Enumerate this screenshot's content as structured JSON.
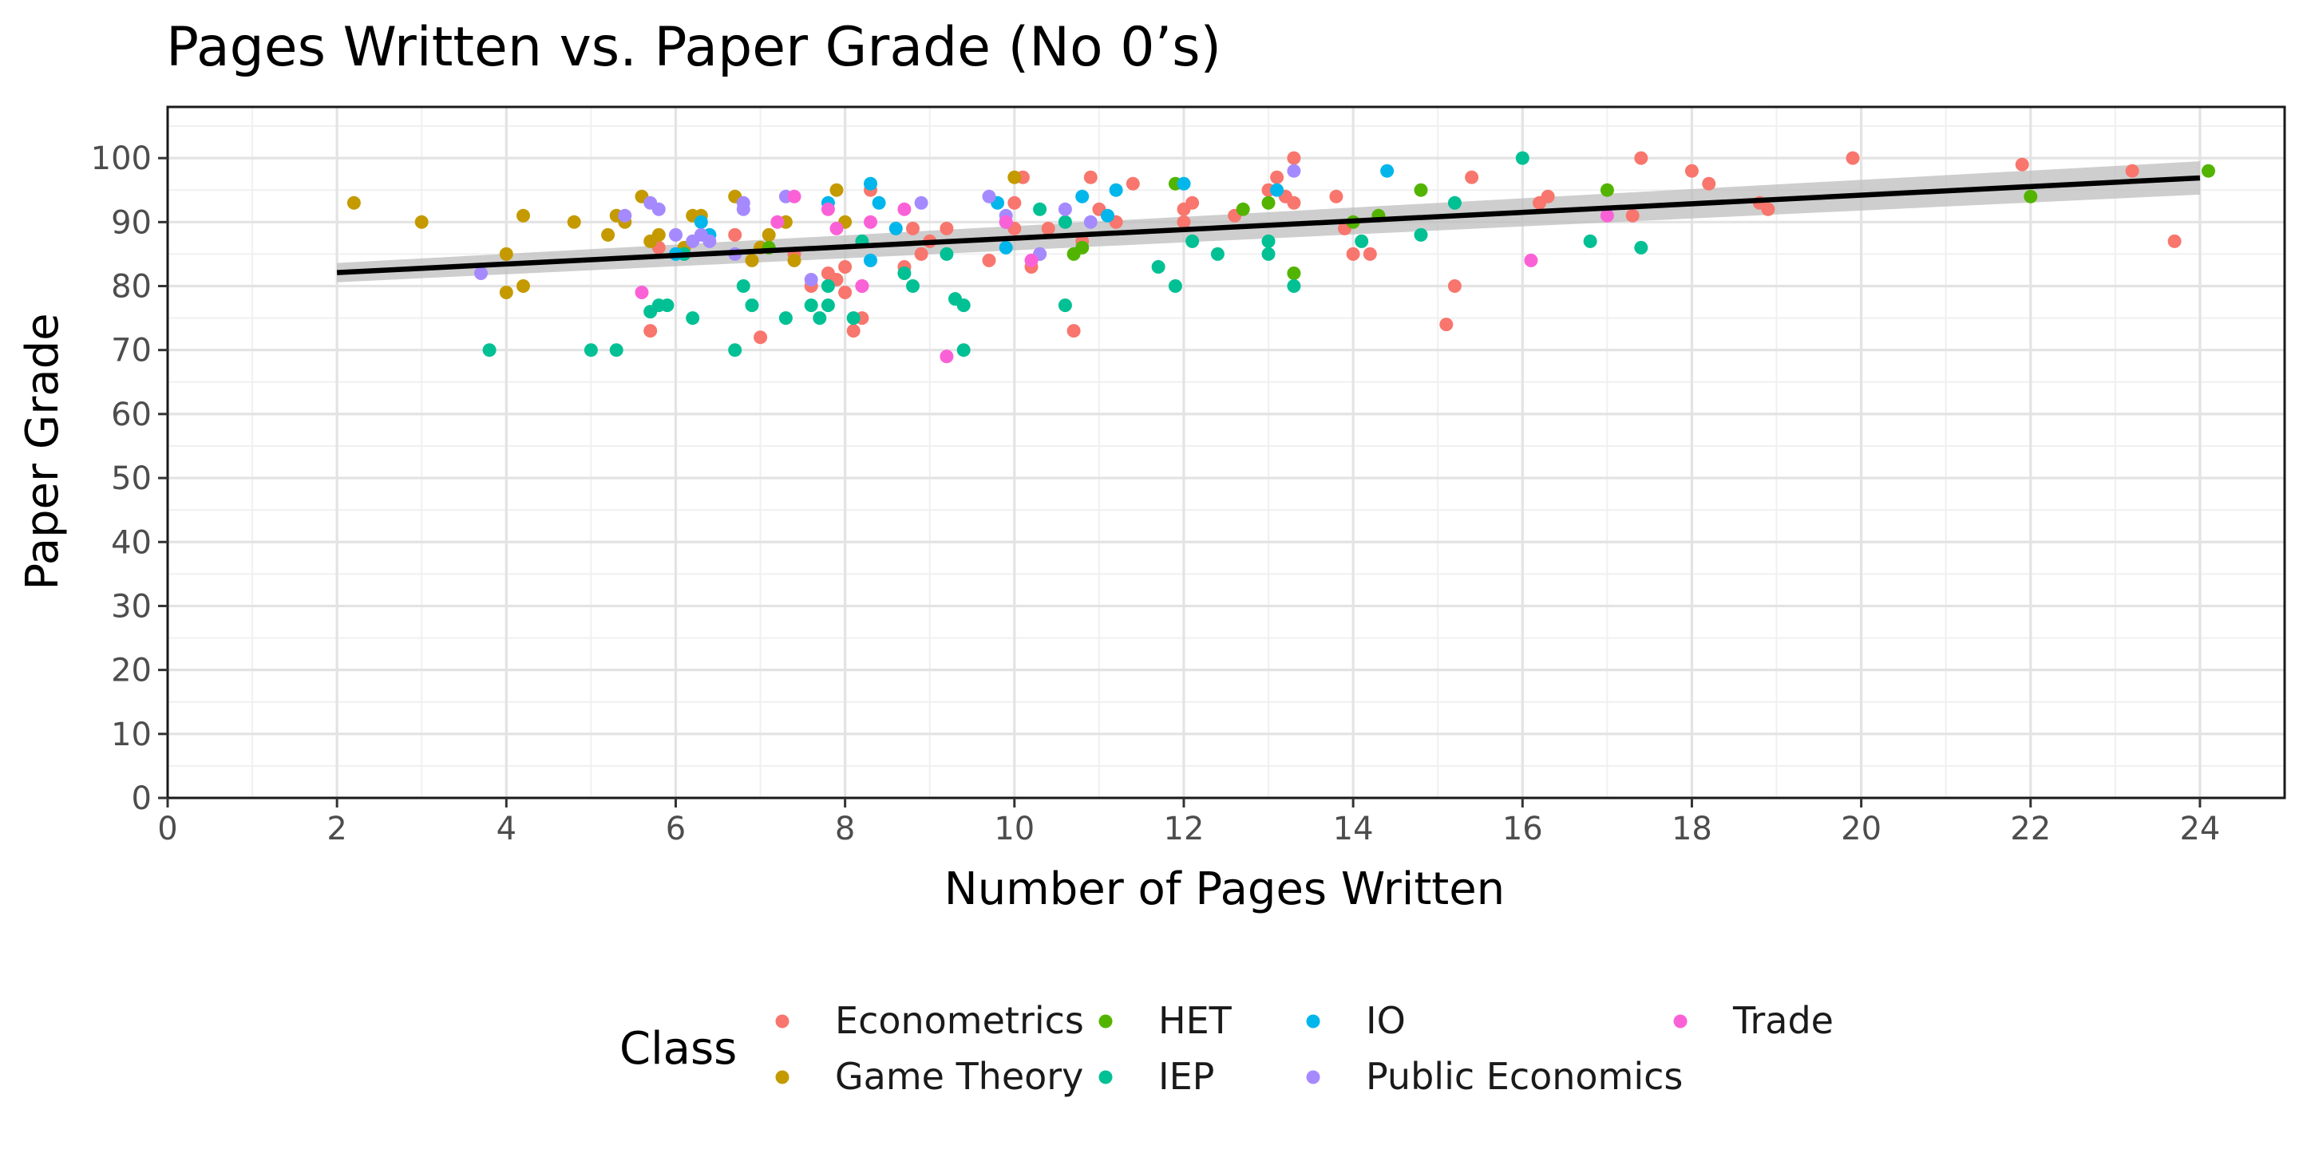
{
  "chart_data": {
    "type": "scatter",
    "title": "Pages Written vs. Paper Grade (No 0’s)",
    "xlabel": "Number of Pages Written",
    "ylabel": "Paper Grade",
    "xlim": [
      0,
      25
    ],
    "ylim": [
      0,
      108
    ],
    "xticks": [
      0,
      2,
      4,
      6,
      8,
      10,
      12,
      14,
      16,
      18,
      20,
      22,
      24
    ],
    "yticks": [
      0,
      10,
      20,
      30,
      40,
      50,
      60,
      70,
      80,
      90,
      100
    ],
    "grid": true,
    "legend": {
      "title": "Class",
      "position": "bottom",
      "entries": [
        "Econometrics",
        "Game Theory",
        "HET",
        "IEP",
        "IO",
        "Public Economics",
        "Trade"
      ]
    },
    "colors": {
      "Econometrics": "#F8766D",
      "Game Theory": "#C49A00",
      "HET": "#53B400",
      "IEP": "#00C094",
      "IO": "#00B6EB",
      "Public Economics": "#A58AFF",
      "Trade": "#FB61D7"
    },
    "trend_line": {
      "method": "linear",
      "x": [
        2,
        24
      ],
      "y": [
        82.1,
        96.9
      ],
      "ci_lower": [
        80.6,
        94.3
      ],
      "ci_upper": [
        83.6,
        99.5
      ],
      "color": "#000000",
      "band_color": "#bdbdbd"
    },
    "series": [
      {
        "name": "Econometrics",
        "points": [
          [
            5.7,
            73.0
          ],
          [
            5.8,
            86.0
          ],
          [
            6.7,
            88.0
          ],
          [
            7.0,
            72.0
          ],
          [
            7.6,
            80.0
          ],
          [
            7.8,
            82.0
          ],
          [
            7.9,
            81.0
          ],
          [
            8.0,
            79.0
          ],
          [
            8.0,
            83.0
          ],
          [
            8.1,
            73.0
          ],
          [
            8.2,
            75.0
          ],
          [
            8.3,
            95.0
          ],
          [
            8.7,
            83.0
          ],
          [
            8.8,
            89.0
          ],
          [
            8.9,
            85.0
          ],
          [
            9.0,
            87.0
          ],
          [
            9.2,
            89.0
          ],
          [
            9.7,
            84.0
          ],
          [
            10.0,
            89.0
          ],
          [
            10.1,
            97.0
          ],
          [
            10.2,
            83.0
          ],
          [
            10.3,
            85.0
          ],
          [
            10.4,
            89.0
          ],
          [
            10.7,
            73.0
          ],
          [
            10.8,
            87.0
          ],
          [
            10.9,
            97.0
          ],
          [
            11.0,
            92.0
          ],
          [
            11.2,
            90.0
          ],
          [
            11.4,
            96.0
          ],
          [
            12.0,
            90.0
          ],
          [
            12.1,
            93.0
          ],
          [
            12.6,
            91.0
          ],
          [
            13.0,
            95.0
          ],
          [
            13.1,
            97.0
          ],
          [
            13.2,
            94.0
          ],
          [
            13.3,
            100.0
          ],
          [
            13.8,
            94.0
          ],
          [
            13.9,
            89.0
          ],
          [
            14.0,
            85.0
          ],
          [
            14.2,
            85.0
          ],
          [
            15.1,
            74.0
          ],
          [
            15.2,
            80.0
          ],
          [
            15.4,
            97.0
          ],
          [
            16.2,
            93.0
          ],
          [
            16.3,
            94.0
          ],
          [
            17.3,
            91.0
          ],
          [
            17.4,
            100.0
          ],
          [
            18.0,
            98.0
          ],
          [
            18.2,
            96.0
          ],
          [
            18.8,
            93.0
          ],
          [
            18.9,
            92.0
          ],
          [
            19.9,
            100.0
          ],
          [
            21.9,
            99.0
          ],
          [
            23.2,
            98.0
          ],
          [
            23.7,
            87.0
          ],
          [
            7.4,
            85.0
          ],
          [
            8.2,
            80.0
          ],
          [
            10.0,
            93.0
          ],
          [
            12.0,
            92.0
          ],
          [
            13.3,
            93.0
          ]
        ]
      },
      {
        "name": "Game Theory",
        "points": [
          [
            2.2,
            93.0
          ],
          [
            3.0,
            90.0
          ],
          [
            4.0,
            85.0
          ],
          [
            4.0,
            79.0
          ],
          [
            4.2,
            91.0
          ],
          [
            4.2,
            80.0
          ],
          [
            4.8,
            90.0
          ],
          [
            5.2,
            88.0
          ],
          [
            5.3,
            91.0
          ],
          [
            5.4,
            90.0
          ],
          [
            5.6,
            94.0
          ],
          [
            5.7,
            87.0
          ],
          [
            5.8,
            88.0
          ],
          [
            6.1,
            86.0
          ],
          [
            6.2,
            91.0
          ],
          [
            6.3,
            91.0
          ],
          [
            6.7,
            94.0
          ],
          [
            7.0,
            86.0
          ],
          [
            7.1,
            88.0
          ],
          [
            7.3,
            90.0
          ],
          [
            7.4,
            84.0
          ],
          [
            7.9,
            95.0
          ],
          [
            8.0,
            90.0
          ],
          [
            10.0,
            97.0
          ],
          [
            6.9,
            84.0
          ]
        ]
      },
      {
        "name": "HET",
        "points": [
          [
            7.1,
            86.0
          ],
          [
            10.7,
            85.0
          ],
          [
            10.8,
            86.0
          ],
          [
            11.9,
            96.0
          ],
          [
            12.7,
            92.0
          ],
          [
            13.0,
            93.0
          ],
          [
            13.3,
            82.0
          ],
          [
            14.0,
            90.0
          ],
          [
            14.3,
            91.0
          ],
          [
            14.8,
            95.0
          ],
          [
            17.0,
            95.0
          ],
          [
            22.0,
            94.0
          ],
          [
            24.1,
            98.0
          ]
        ]
      },
      {
        "name": "IEP",
        "points": [
          [
            3.8,
            70.0
          ],
          [
            5.0,
            70.0
          ],
          [
            5.3,
            70.0
          ],
          [
            5.7,
            76.0
          ],
          [
            5.8,
            77.0
          ],
          [
            5.9,
            77.0
          ],
          [
            6.1,
            85.0
          ],
          [
            6.2,
            75.0
          ],
          [
            6.7,
            70.0
          ],
          [
            6.8,
            80.0
          ],
          [
            6.9,
            77.0
          ],
          [
            7.3,
            75.0
          ],
          [
            7.6,
            77.0
          ],
          [
            7.7,
            75.0
          ],
          [
            7.8,
            80.0
          ],
          [
            7.8,
            77.0
          ],
          [
            8.1,
            75.0
          ],
          [
            8.7,
            82.0
          ],
          [
            8.8,
            80.0
          ],
          [
            9.2,
            85.0
          ],
          [
            9.3,
            78.0
          ],
          [
            9.4,
            77.0
          ],
          [
            9.4,
            70.0
          ],
          [
            10.3,
            92.0
          ],
          [
            10.6,
            90.0
          ],
          [
            10.6,
            77.0
          ],
          [
            11.7,
            83.0
          ],
          [
            11.9,
            80.0
          ],
          [
            12.1,
            87.0
          ],
          [
            12.4,
            85.0
          ],
          [
            13.0,
            87.0
          ],
          [
            13.0,
            85.0
          ],
          [
            13.3,
            80.0
          ],
          [
            14.1,
            87.0
          ],
          [
            14.8,
            88.0
          ],
          [
            15.2,
            93.0
          ],
          [
            16.0,
            100.0
          ],
          [
            16.8,
            87.0
          ],
          [
            17.4,
            86.0
          ],
          [
            8.2,
            87.0
          ]
        ]
      },
      {
        "name": "IO",
        "points": [
          [
            6.0,
            85.0
          ],
          [
            6.3,
            90.0
          ],
          [
            6.4,
            88.0
          ],
          [
            7.8,
            93.0
          ],
          [
            8.3,
            96.0
          ],
          [
            8.3,
            84.0
          ],
          [
            8.4,
            93.0
          ],
          [
            8.6,
            89.0
          ],
          [
            9.8,
            93.0
          ],
          [
            9.9,
            90.0
          ],
          [
            10.8,
            94.0
          ],
          [
            11.1,
            91.0
          ],
          [
            11.2,
            95.0
          ],
          [
            12.0,
            96.0
          ],
          [
            13.1,
            95.0
          ],
          [
            14.4,
            98.0
          ],
          [
            9.9,
            86.0
          ]
        ]
      },
      {
        "name": "Public Economics",
        "points": [
          [
            3.7,
            82.0
          ],
          [
            5.4,
            91.0
          ],
          [
            5.7,
            93.0
          ],
          [
            5.8,
            92.0
          ],
          [
            6.0,
            88.0
          ],
          [
            6.2,
            87.0
          ],
          [
            6.3,
            88.0
          ],
          [
            6.4,
            87.0
          ],
          [
            6.7,
            85.0
          ],
          [
            6.8,
            93.0
          ],
          [
            6.8,
            92.0
          ],
          [
            7.3,
            94.0
          ],
          [
            7.6,
            81.0
          ],
          [
            8.9,
            93.0
          ],
          [
            9.7,
            94.0
          ],
          [
            10.3,
            85.0
          ],
          [
            10.6,
            92.0
          ],
          [
            10.9,
            90.0
          ],
          [
            13.3,
            98.0
          ],
          [
            9.9,
            91.0
          ]
        ]
      },
      {
        "name": "Trade",
        "points": [
          [
            5.6,
            79.0
          ],
          [
            7.2,
            90.0
          ],
          [
            7.4,
            94.0
          ],
          [
            7.9,
            89.0
          ],
          [
            8.2,
            80.0
          ],
          [
            8.3,
            90.0
          ],
          [
            8.7,
            92.0
          ],
          [
            9.2,
            69.0
          ],
          [
            9.9,
            90.0
          ],
          [
            10.2,
            84.0
          ],
          [
            16.1,
            84.0
          ],
          [
            17.0,
            91.0
          ],
          [
            7.8,
            92.0
          ]
        ]
      }
    ]
  }
}
